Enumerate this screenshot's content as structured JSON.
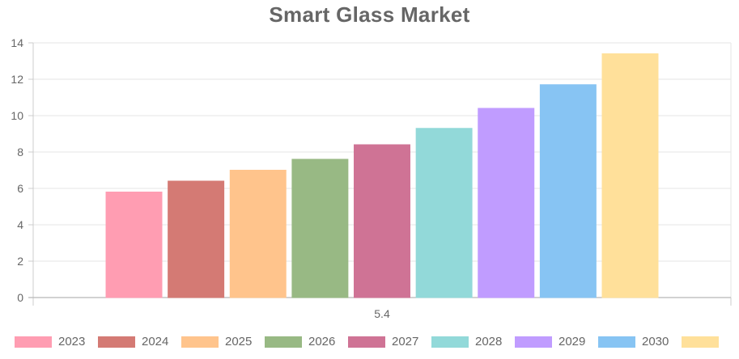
{
  "chart_data": {
    "type": "bar",
    "title": "Smart Glass Market",
    "categories": [
      "5.4"
    ],
    "ylim": [
      0,
      14
    ],
    "yticks": [
      0,
      2,
      4,
      6,
      8,
      10,
      12,
      14
    ],
    "grid": true,
    "legend_position": "bottom",
    "series": [
      {
        "name": "2023",
        "values": [
          5.8
        ],
        "color": "#ff9db2",
        "border": "#ff9db2"
      },
      {
        "name": "2024",
        "values": [
          6.4
        ],
        "color": "#d47a74",
        "border": "#d47a74"
      },
      {
        "name": "2025",
        "values": [
          7.0
        ],
        "color": "#ffc48c",
        "border": "#ffc48c"
      },
      {
        "name": "2026",
        "values": [
          7.6
        ],
        "color": "#98b984",
        "border": "#98b984"
      },
      {
        "name": "2027",
        "values": [
          8.4
        ],
        "color": "#cf7395",
        "border": "#cf7395"
      },
      {
        "name": "2028",
        "values": [
          9.3
        ],
        "color": "#92d9d9",
        "border": "#92d9d9"
      },
      {
        "name": "2029",
        "values": [
          10.4
        ],
        "color": "#c09cff",
        "border": "#c09cff"
      },
      {
        "name": "2030",
        "values": [
          11.7
        ],
        "color": "#87c4f3",
        "border": "#87c4f3"
      },
      {
        "name": "",
        "values": [
          13.4
        ],
        "color": "#ffe09a",
        "border": "#ffe09a"
      }
    ]
  }
}
